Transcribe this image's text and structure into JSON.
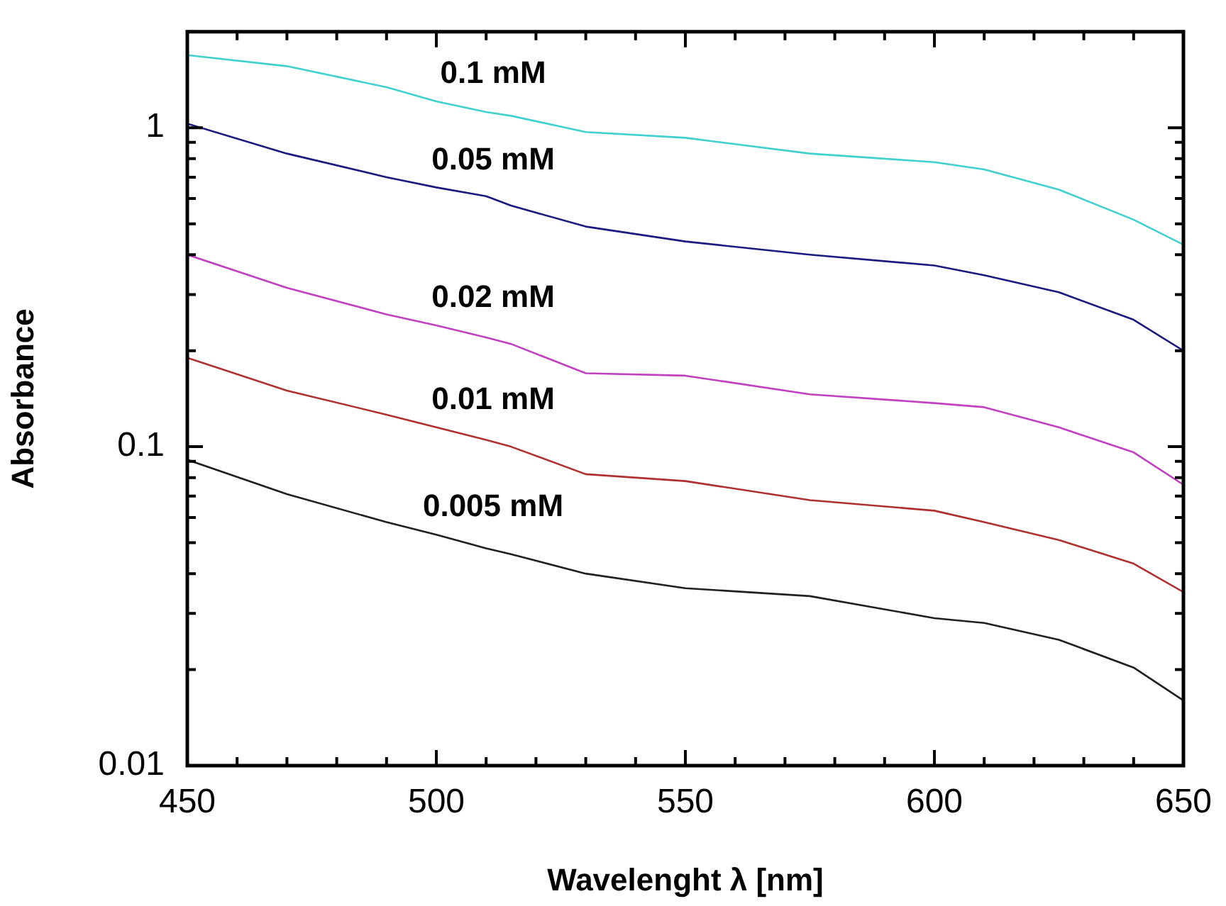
{
  "chart_data": {
    "type": "line",
    "xlabel": "Wavelenght λ [nm]",
    "ylabel": "Absorbance",
    "log": "y",
    "marker": "none",
    "legend": false,
    "x": [
      450,
      470,
      490,
      500,
      510,
      515,
      530,
      550,
      575,
      600,
      610,
      625,
      640,
      650
    ],
    "xlim": [
      450,
      650
    ],
    "xticks": [
      450,
      {
        "value": 460,
        "label": null
      },
      {
        "value": 470,
        "label": null
      },
      {
        "value": 480,
        "label": null
      },
      {
        "value": 490,
        "label": null
      },
      500,
      {
        "value": 510,
        "label": null
      },
      {
        "value": 520,
        "label": null
      },
      {
        "value": 530,
        "label": null
      },
      {
        "value": 540,
        "label": null
      },
      550,
      {
        "value": 560,
        "label": null
      },
      {
        "value": 570,
        "label": null
      },
      {
        "value": 580,
        "label": null
      },
      {
        "value": 590,
        "label": null
      },
      600,
      {
        "value": 610,
        "label": null
      },
      {
        "value": 620,
        "label": null
      },
      {
        "value": 630,
        "label": null
      },
      {
        "value": 640,
        "label": null
      },
      650
    ],
    "ylim": [
      0.01,
      2
    ],
    "yticks": [
      0.01,
      {
        "value": 0.02,
        "label": null
      },
      {
        "value": 0.03,
        "label": null
      },
      {
        "value": 0.04,
        "label": null
      },
      {
        "value": 0.05,
        "label": null
      },
      {
        "value": 0.06,
        "label": null
      },
      {
        "value": 0.07,
        "label": null
      },
      {
        "value": 0.08,
        "label": null
      },
      {
        "value": 0.09,
        "label": null
      },
      0.1,
      {
        "value": 0.2,
        "label": null
      },
      {
        "value": 0.3,
        "label": null
      },
      {
        "value": 0.4,
        "label": null
      },
      {
        "value": 0.5,
        "label": null
      },
      {
        "value": 0.6,
        "label": null
      },
      {
        "value": 0.7,
        "label": null
      },
      {
        "value": 0.8,
        "label": null
      },
      {
        "value": 0.9,
        "label": null
      },
      1,
      {
        "value": 2,
        "label": null
      }
    ],
    "series": [
      {
        "name": "0.1 mM",
        "color": "#40d0d0",
        "values": [
          1.69,
          1.56,
          1.34,
          1.21,
          1.12,
          1.09,
          0.97,
          0.93,
          0.83,
          0.78,
          0.74,
          0.64,
          0.515,
          0.43
        ]
      },
      {
        "name": "0.05 mM",
        "color": "#1a1a80",
        "values": [
          1.03,
          0.83,
          0.7,
          0.65,
          0.61,
          0.57,
          0.49,
          0.44,
          0.4,
          0.37,
          0.345,
          0.305,
          0.25,
          0.2
        ]
      },
      {
        "name": "0.02 mM",
        "color": "#c040c0",
        "values": [
          0.4,
          0.315,
          0.26,
          0.24,
          0.22,
          0.21,
          0.17,
          0.167,
          0.146,
          0.137,
          0.133,
          0.115,
          0.096,
          0.076
        ]
      },
      {
        "name": "0.01 mM",
        "color": "#b03030",
        "values": [
          0.19,
          0.15,
          0.126,
          0.115,
          0.105,
          0.1,
          0.082,
          0.078,
          0.068,
          0.063,
          0.058,
          0.051,
          0.043,
          0.035
        ]
      },
      {
        "name": "0.005 mM",
        "color": "#202020",
        "values": [
          0.091,
          0.071,
          0.058,
          0.053,
          0.048,
          0.046,
          0.04,
          0.036,
          0.034,
          0.029,
          0.028,
          0.0248,
          0.0203,
          0.016
        ]
      }
    ]
  }
}
